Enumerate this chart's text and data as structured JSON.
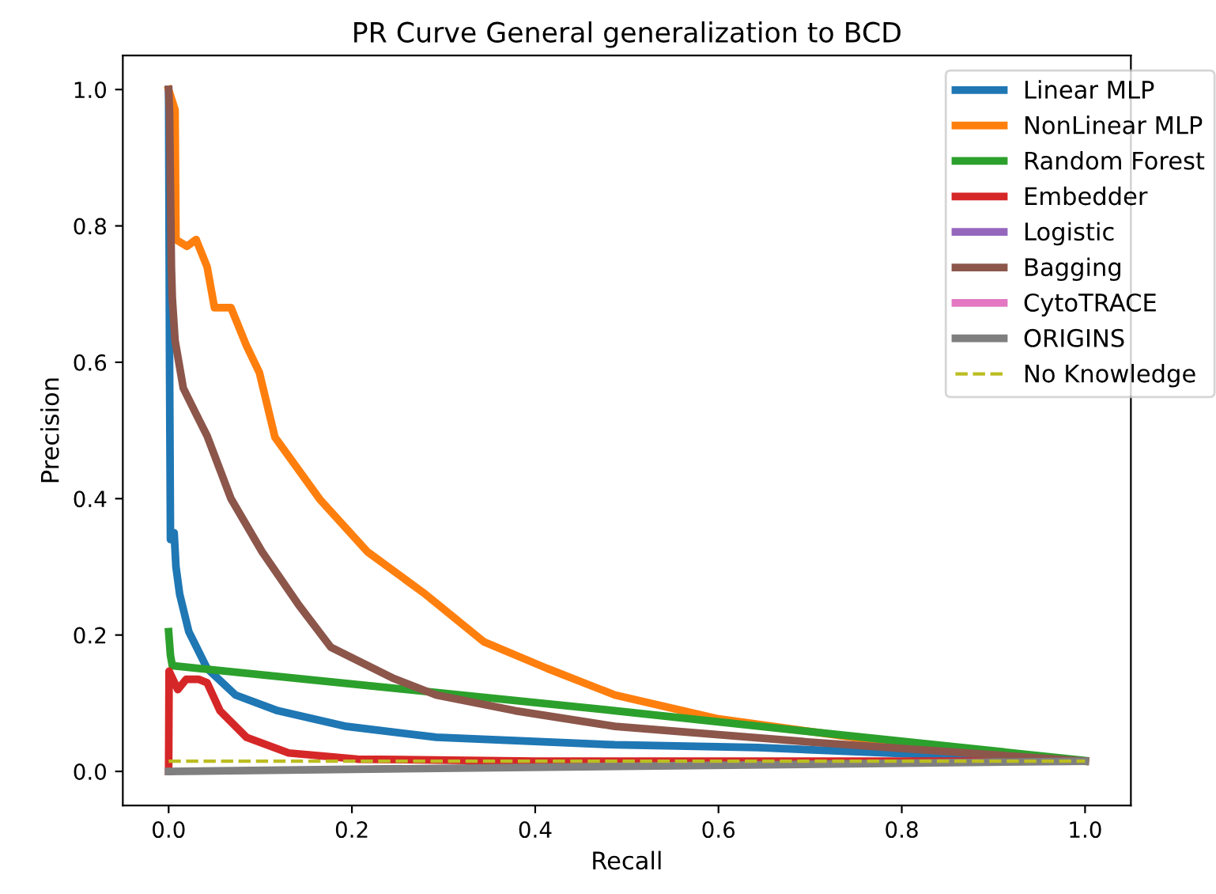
{
  "chart_data": {
    "type": "line",
    "title": "PR Curve General generalization to BCD",
    "xlabel": "Recall",
    "ylabel": "Precision",
    "xlim": [
      -0.05,
      1.05
    ],
    "ylim": [
      -0.05,
      1.05
    ],
    "xticks": [
      {
        "value": 0,
        "label": "0.0"
      },
      0.2,
      0.4,
      0.6,
      0.8,
      {
        "value": 1,
        "label": "1.0"
      }
    ],
    "yticks": [
      {
        "value": 0,
        "label": "0.0"
      },
      0.2,
      0.4,
      0.6,
      0.8,
      {
        "value": 1,
        "label": "1.0"
      }
    ],
    "grid": false,
    "legend": "top right",
    "marker": "none",
    "series": [
      {
        "name": "Linear MLP",
        "color": "#1f77b4",
        "x": [
          0,
          0.001,
          0.002,
          0.006,
          0.008,
          0.012,
          0.022,
          0.042,
          0.073,
          0.119,
          0.194,
          0.292,
          0.487,
          0.643,
          1.0
        ],
        "values": [
          1.0,
          0.6,
          0.34,
          0.35,
          0.3,
          0.26,
          0.205,
          0.151,
          0.112,
          0.089,
          0.066,
          0.05,
          0.039,
          0.035,
          0.015
        ]
      },
      {
        "name": "NonLinear MLP",
        "color": "#ff7f0e",
        "x": [
          0,
          0.007,
          0.008,
          0.02,
          0.03,
          0.042,
          0.05,
          0.068,
          0.085,
          0.099,
          0.116,
          0.165,
          0.217,
          0.28,
          0.344,
          0.413,
          0.487,
          0.6,
          0.8,
          1.0
        ],
        "values": [
          1.0,
          0.97,
          0.78,
          0.77,
          0.78,
          0.74,
          0.68,
          0.68,
          0.624,
          0.585,
          0.49,
          0.399,
          0.322,
          0.26,
          0.19,
          0.151,
          0.112,
          0.077,
          0.04,
          0.015
        ]
      },
      {
        "name": "Random Forest",
        "color": "#2ca02c",
        "x": [
          0,
          0.002,
          0.004,
          0.487,
          0.758,
          1.0
        ],
        "values": [
          0.205,
          0.17,
          0.155,
          0.089,
          0.05,
          0.016
        ]
      },
      {
        "name": "Embedder",
        "color": "#d62728",
        "x": [
          0,
          0.0005,
          0.01,
          0.019,
          0.033,
          0.042,
          0.056,
          0.085,
          0.131,
          0.206,
          0.4,
          1.0
        ],
        "values": [
          0.0,
          0.147,
          0.12,
          0.135,
          0.135,
          0.13,
          0.089,
          0.05,
          0.027,
          0.018,
          0.015,
          0.015
        ]
      },
      {
        "name": "Logistic",
        "color": "#9467bd"
      },
      {
        "name": "Bagging",
        "color": "#8c564b",
        "x": [
          0,
          0.001,
          0.003,
          0.004,
          0.007,
          0.016,
          0.03,
          0.042,
          0.068,
          0.102,
          0.142,
          0.177,
          0.246,
          0.292,
          0.378,
          0.487,
          0.7,
          1.0
        ],
        "values": [
          1.0,
          0.966,
          0.74,
          0.694,
          0.632,
          0.562,
          0.524,
          0.492,
          0.4,
          0.322,
          0.244,
          0.182,
          0.136,
          0.112,
          0.089,
          0.066,
          0.043,
          0.015
        ]
      },
      {
        "name": "CytoTRACE",
        "color": "#e377c2"
      },
      {
        "name": "ORIGINS",
        "color": "#7f7f7f",
        "x": [
          0,
          1.0
        ],
        "values": [
          0.0,
          0.015
        ]
      },
      {
        "name": "No Knowledge",
        "color": "#bcbd22",
        "line_style": "dashed",
        "x": [
          0,
          1.0
        ],
        "values": [
          0.015,
          0.015
        ]
      }
    ]
  }
}
